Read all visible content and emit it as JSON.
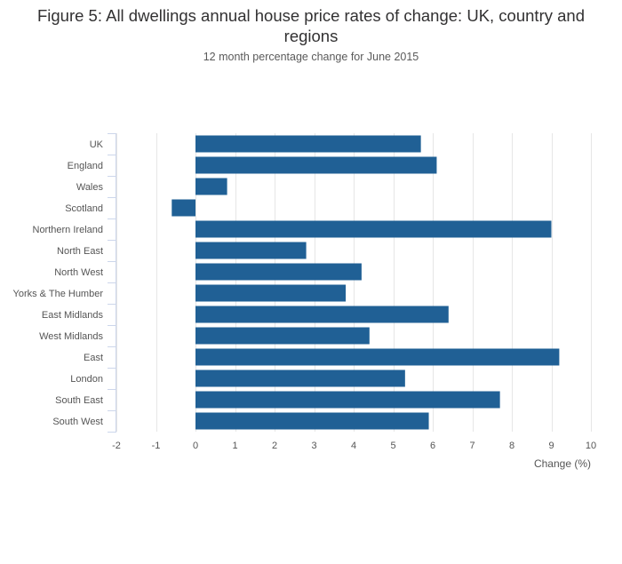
{
  "title": "Figure 5: All dwellings annual house price rates of change: UK, country and regions",
  "subtitle": "12 month percentage change for June 2015",
  "colors": {
    "bar": "#206095",
    "grid": "#e6e6e6",
    "axis": "#ccd6eb"
  },
  "chart_data": {
    "type": "bar",
    "orientation": "horizontal",
    "title": "Figure 5: All dwellings annual house price rates of change: UK, country and regions",
    "subtitle": "12 month percentage change for June 2015",
    "xlabel": "Change (%)",
    "ylabel": "",
    "xlim": [
      -2,
      10
    ],
    "xticks": [
      -2,
      -1,
      0,
      1,
      2,
      3,
      4,
      5,
      6,
      7,
      8,
      9,
      10
    ],
    "grid": true,
    "categories": [
      "UK",
      "England",
      "Wales",
      "Scotland",
      "Northern Ireland",
      "North East",
      "North West",
      "Yorks & The Humber",
      "East Midlands",
      "West Midlands",
      "East",
      "London",
      "South East",
      "South West"
    ],
    "values": [
      5.7,
      6.1,
      0.8,
      -0.6,
      9.0,
      2.8,
      4.2,
      3.8,
      6.4,
      4.4,
      9.2,
      5.3,
      7.7,
      5.9
    ]
  }
}
